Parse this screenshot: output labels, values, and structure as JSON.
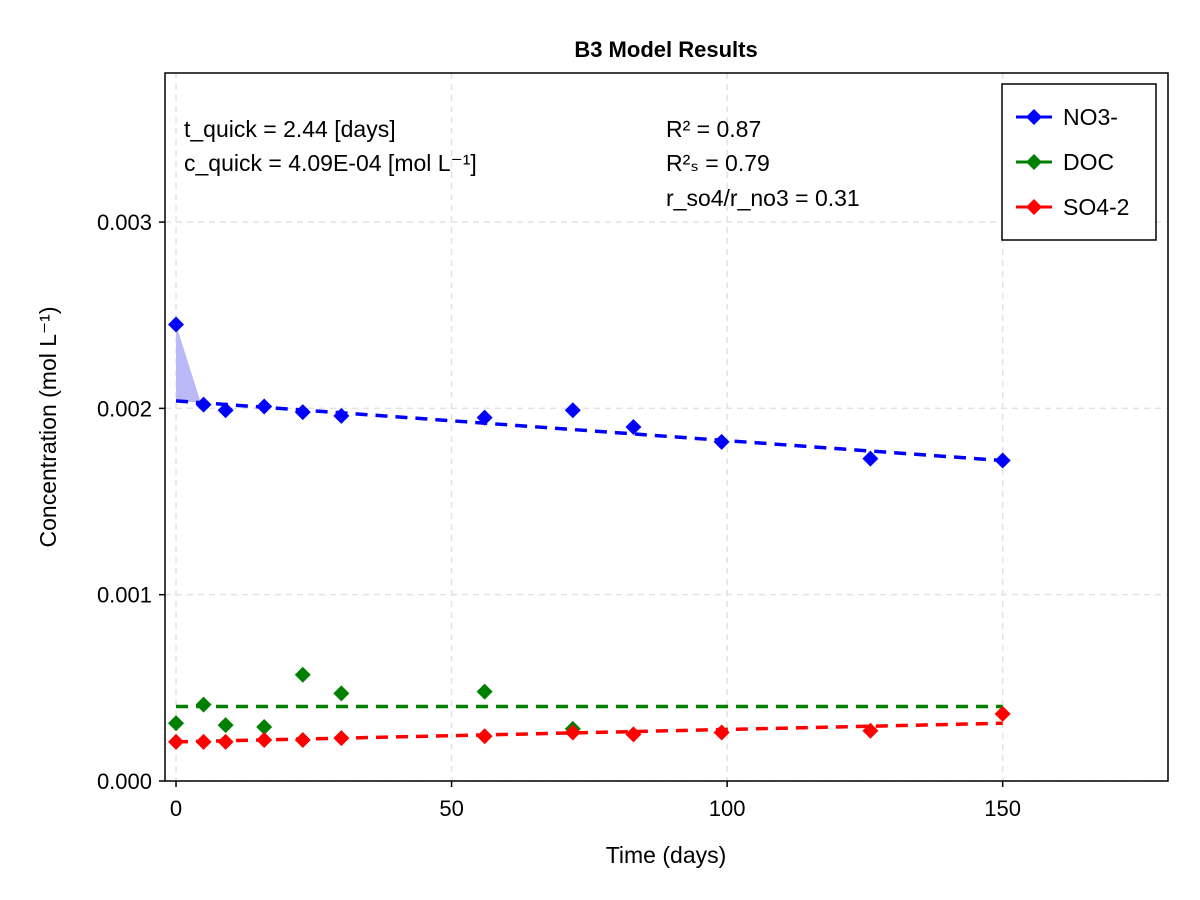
{
  "chart_data": {
    "type": "scatter",
    "title": "B3 Model Results",
    "xlabel": "Time (days)",
    "ylabel": "Concentration (mol L⁻¹)",
    "xlim": [
      -2,
      180
    ],
    "ylim": [
      0,
      0.0038
    ],
    "xticks": [
      0,
      50,
      100,
      150
    ],
    "xtick_labels": [
      "0",
      "50",
      "100",
      "150"
    ],
    "yticks": [
      0,
      0.001,
      0.002,
      0.003
    ],
    "ytick_labels": [
      "0.000",
      "0.001",
      "0.002",
      "0.003"
    ],
    "grid": true,
    "legend_position": "top-right",
    "annotations": {
      "t_quick": "t_quick = 2.44 [days]",
      "c_quick": "c_quick =  4.09E-04 [mol L⁻¹]",
      "r2": "R² = 0.87",
      "r2s": "R²ₛ = 0.79",
      "ratio": "r_so4/r_no3 = 0.31"
    },
    "series": [
      {
        "name": "NO3-",
        "color": "#0000ff",
        "points": [
          [
            0,
            0.00245
          ],
          [
            5,
            0.00202
          ],
          [
            9,
            0.00199
          ],
          [
            16,
            0.00201
          ],
          [
            23,
            0.00198
          ],
          [
            30,
            0.00196
          ],
          [
            56,
            0.00195
          ],
          [
            72,
            0.00199
          ],
          [
            83,
            0.0019
          ],
          [
            99,
            0.00182
          ],
          [
            126,
            0.00173
          ],
          [
            150,
            0.00172
          ]
        ],
        "fit": [
          [
            0,
            0.00204
          ],
          [
            150,
            0.00172
          ]
        ],
        "quick_band": [
          [
            0,
            0.00245
          ],
          [
            0,
            0.00204
          ],
          [
            4.5,
            0.00203
          ]
        ]
      },
      {
        "name": "DOC",
        "color": "#008000",
        "points": [
          [
            0,
            0.00031
          ],
          [
            5,
            0.00041
          ],
          [
            9,
            0.0003
          ],
          [
            16,
            0.00029
          ],
          [
            23,
            0.00057
          ],
          [
            30,
            0.00047
          ],
          [
            56,
            0.00048
          ],
          [
            72,
            0.00028
          ]
        ],
        "fit": [
          [
            0,
            0.0004
          ],
          [
            150,
            0.0004
          ]
        ]
      },
      {
        "name": "SO4-2",
        "color": "#ff0000",
        "points": [
          [
            0,
            0.00021
          ],
          [
            5,
            0.00021
          ],
          [
            9,
            0.00021
          ],
          [
            16,
            0.00022
          ],
          [
            23,
            0.00022
          ],
          [
            30,
            0.00023
          ],
          [
            56,
            0.00024
          ],
          [
            72,
            0.00026
          ],
          [
            83,
            0.00025
          ],
          [
            99,
            0.00026
          ],
          [
            126,
            0.00027
          ],
          [
            150,
            0.00036
          ]
        ],
        "fit": [
          [
            0,
            0.00021
          ],
          [
            150,
            0.00031
          ]
        ]
      }
    ]
  }
}
